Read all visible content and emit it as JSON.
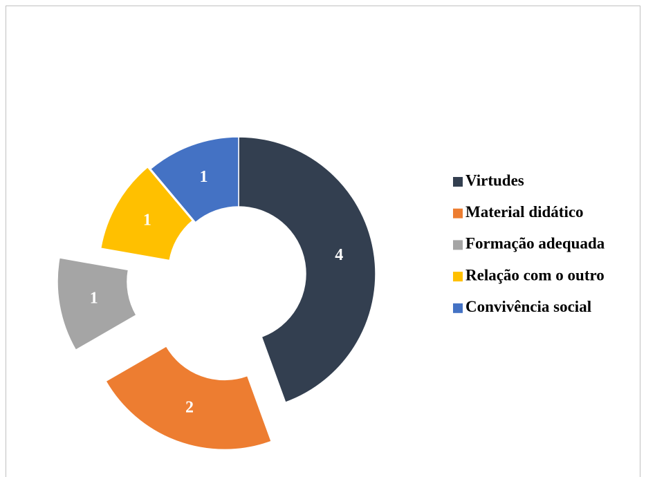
{
  "chart_data": {
    "type": "donut",
    "categories": [
      "Virtudes",
      "Material didático",
      "Formação adequada",
      "Relação com o outro",
      "Convivência social"
    ],
    "values": [
      4,
      2,
      1,
      1,
      1
    ],
    "colors": [
      "#333f50",
      "#ed7d31",
      "#a5a5a5",
      "#ffc000",
      "#4472c4"
    ],
    "legend": "right"
  }
}
